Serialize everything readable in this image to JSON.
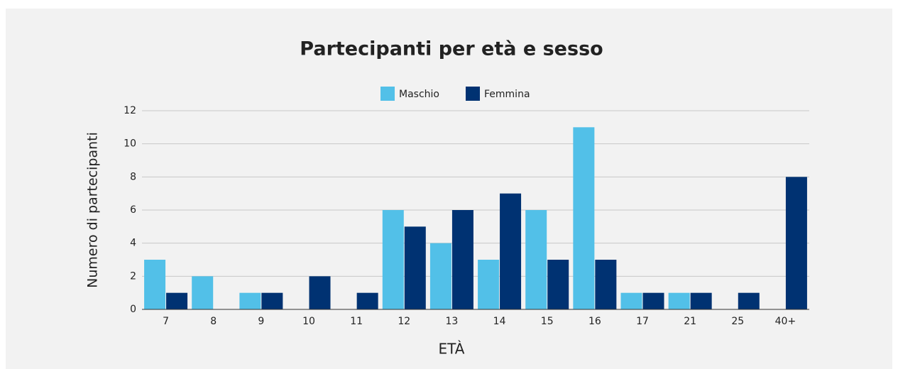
{
  "chart_data": {
    "type": "bar",
    "title": "Partecipanti per età e sesso",
    "x_label": "ETÀ",
    "y_label": "Numero di partecipanti",
    "categories": [
      "7",
      "8",
      "9",
      "10",
      "11",
      "12",
      "13",
      "14",
      "15",
      "16",
      "17",
      "21",
      "25",
      "40+"
    ],
    "series": [
      {
        "name": "Maschio",
        "color": "#52c0e8",
        "values": [
          3,
          2,
          1,
          0,
          0,
          6,
          4,
          3,
          6,
          11,
          1,
          1,
          0,
          0
        ]
      },
      {
        "name": "Femmina",
        "color": "#003272",
        "values": [
          1,
          0,
          1,
          2,
          1,
          5,
          6,
          7,
          3,
          3,
          1,
          1,
          1,
          8
        ]
      }
    ],
    "ylim": [
      0,
      12
    ],
    "yticks": [
      0,
      2,
      4,
      6,
      8,
      10,
      12
    ],
    "grid": true,
    "legend": "top"
  }
}
